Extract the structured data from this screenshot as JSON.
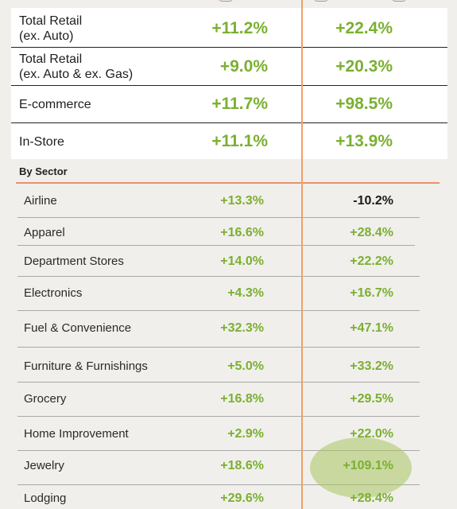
{
  "totals": [
    {
      "label": "Total Retail\n(ex. Auto)",
      "v1": "+11.2%",
      "v2": "+22.4%"
    },
    {
      "label": "Total Retail\n(ex. Auto & ex. Gas)",
      "v1": "+9.0%",
      "v2": "+20.3%"
    },
    {
      "label": "E-commerce",
      "v1": "+11.7%",
      "v2": "+98.5%"
    },
    {
      "label": "In-Store",
      "v1": "+11.1%",
      "v2": "+13.9%"
    }
  ],
  "sector_heading": "By Sector",
  "sectors": [
    {
      "label": "Airline",
      "v1": "+13.3%",
      "v2": "-10.2%"
    },
    {
      "label": "Apparel",
      "v1": "+16.6%",
      "v2": "+28.4%"
    },
    {
      "label": "Department Stores",
      "v1": "+14.0%",
      "v2": "+22.2%"
    },
    {
      "label": "Electronics",
      "v1": "+4.3%",
      "v2": "+16.7%"
    },
    {
      "label": "Fuel & Convenience",
      "v1": "+32.3%",
      "v2": "+47.1%"
    },
    {
      "label": "Furniture & Furnishings",
      "v1": "+5.0%",
      "v2": "+33.2%"
    },
    {
      "label": "Grocery",
      "v1": "+16.8%",
      "v2": "+29.5%"
    },
    {
      "label": "Home Improvement",
      "v1": "+2.9%",
      "v2": "+22.0%"
    },
    {
      "label": "Jewelry",
      "v1": "+18.6%",
      "v2": "+109.1%"
    },
    {
      "label": "Lodging",
      "v1": "+29.6%",
      "v2": "+28.4%"
    }
  ],
  "colors": {
    "positive": "#7ab030",
    "negative": "#1b1b1b",
    "divider_orange": "#f0a06a",
    "highlight": "#a8c460"
  }
}
